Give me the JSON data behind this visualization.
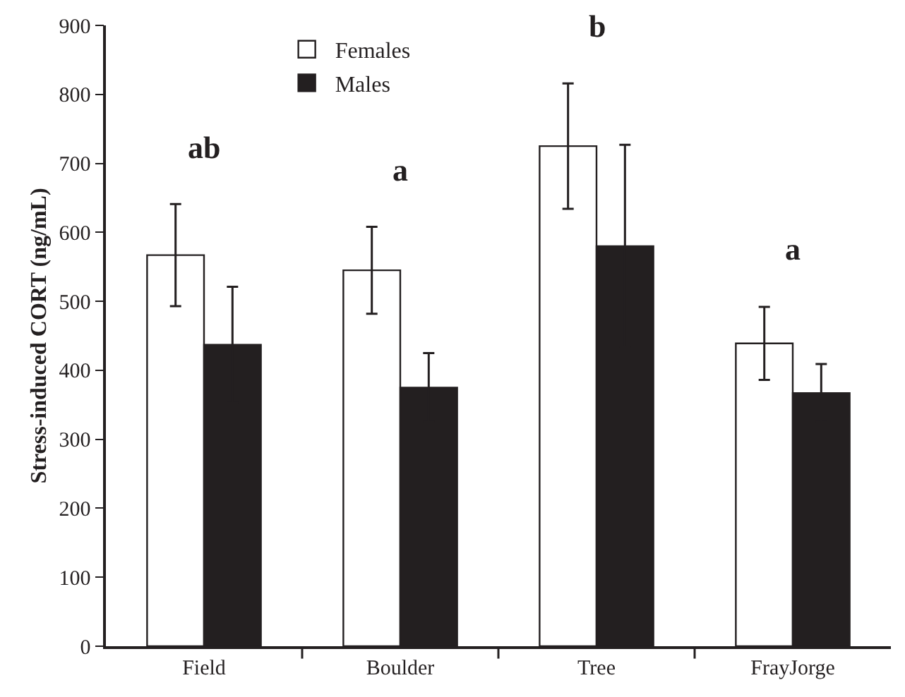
{
  "chart_data": {
    "type": "bar",
    "ylabel": "Stress-induced CORT (ng/mL)",
    "categories": [
      "Field",
      "Boulder",
      "Tree",
      "FrayJorge"
    ],
    "series": [
      {
        "name": "Females",
        "color": "#ffffff",
        "values": [
          567,
          545,
          725,
          439
        ],
        "errors": [
          74,
          63,
          91,
          53
        ]
      },
      {
        "name": "Males",
        "color": "#231f20",
        "values": [
          437,
          375,
          580,
          367
        ],
        "errors": [
          84,
          50,
          147,
          42
        ]
      }
    ],
    "ylim": [
      0,
      900
    ],
    "yticks": [
      0,
      100,
      200,
      300,
      400,
      500,
      600,
      700,
      800,
      900
    ],
    "grid": false,
    "legend": "top",
    "annotations": [
      "ab",
      "a",
      "b",
      "a"
    ]
  }
}
